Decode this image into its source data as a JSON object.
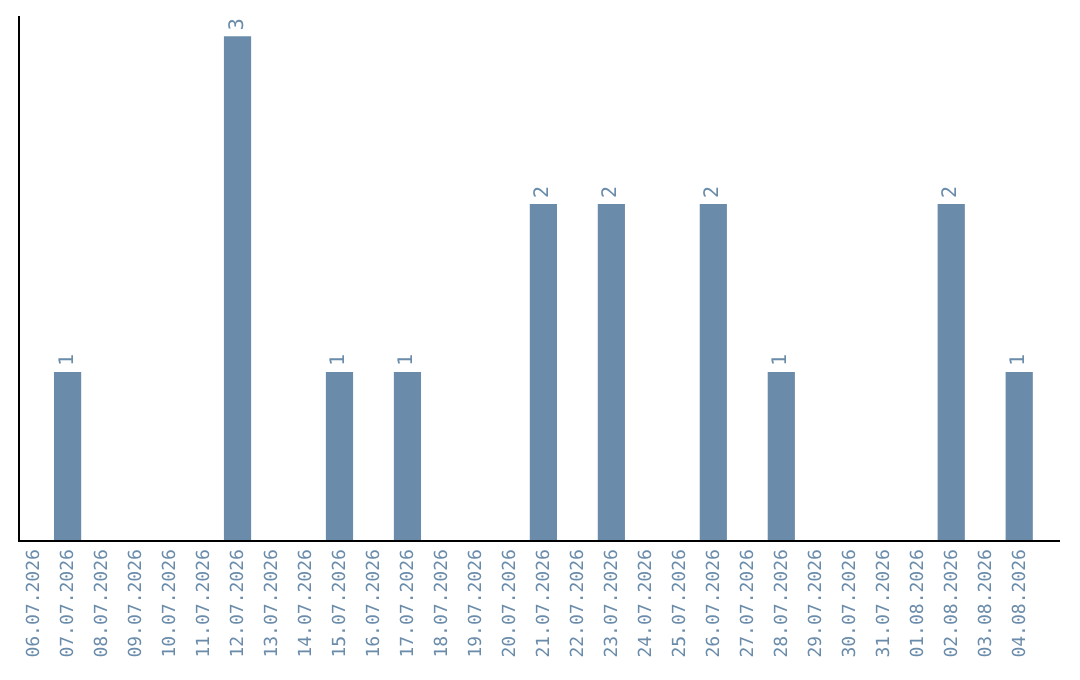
{
  "chart_data": {
    "type": "bar",
    "categories": [
      "06.07.2026",
      "07.07.2026",
      "08.07.2026",
      "09.07.2026",
      "10.07.2026",
      "11.07.2026",
      "12.07.2026",
      "13.07.2026",
      "14.07.2026",
      "15.07.2026",
      "16.07.2026",
      "17.07.2026",
      "18.07.2026",
      "19.07.2026",
      "20.07.2026",
      "21.07.2026",
      "22.07.2026",
      "23.07.2026",
      "24.07.2026",
      "25.07.2026",
      "26.07.2026",
      "27.07.2026",
      "28.07.2026",
      "29.07.2026",
      "30.07.2026",
      "31.07.2026",
      "01.08.2026",
      "02.08.2026",
      "03.08.2026",
      "04.08.2026"
    ],
    "values": [
      0,
      1,
      0,
      0,
      0,
      0,
      3,
      0,
      0,
      1,
      0,
      1,
      0,
      0,
      0,
      2,
      0,
      2,
      0,
      0,
      2,
      0,
      1,
      0,
      0,
      0,
      0,
      2,
      0,
      1
    ],
    "value_labels": [
      null,
      "1",
      null,
      null,
      null,
      null,
      "3",
      null,
      null,
      "1",
      null,
      "1",
      null,
      null,
      null,
      "2",
      null,
      "2",
      null,
      null,
      "2",
      null,
      "1",
      null,
      null,
      null,
      null,
      "2",
      null,
      "1"
    ],
    "color": "#6a8caa",
    "tick_labels": "x"
  }
}
